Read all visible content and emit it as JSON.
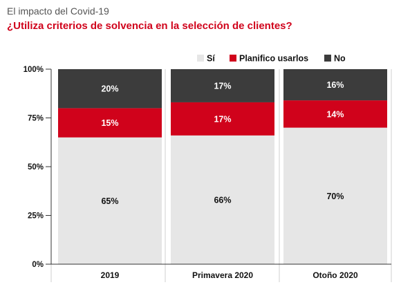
{
  "header": {
    "kicker": "El impacto del Covid-19",
    "title": "¿Utiliza criterios de solvencia en la selección de clientes?"
  },
  "colors": {
    "title": "#d0021b",
    "kicker": "#555555",
    "si": "#e6e6e6",
    "planifico": "#d0021b",
    "no": "#3c3c3c"
  },
  "chart_data": {
    "type": "bar",
    "stacked": true,
    "title": "¿Utiliza criterios de solvencia en la selección de clientes?",
    "categories": [
      "2019",
      "Primavera 2020",
      "Otoño 2020"
    ],
    "series": [
      {
        "name": "Sí",
        "color": "#e6e6e6",
        "values": [
          65,
          66,
          70
        ],
        "labels": [
          "65%",
          "66%",
          "70%"
        ]
      },
      {
        "name": "Planifico usarlos",
        "color": "#d0021b",
        "values": [
          15,
          17,
          14
        ],
        "labels": [
          "15%",
          "17%",
          "14%"
        ]
      },
      {
        "name": "No",
        "color": "#3c3c3c",
        "values": [
          20,
          17,
          16
        ],
        "labels": [
          "20%",
          "17%",
          "16%"
        ]
      }
    ],
    "ylim": [
      0,
      100
    ],
    "yticks": [
      "0%",
      "25%",
      "50%",
      "75%",
      "100%"
    ],
    "legend_position": "top-right",
    "grid": false
  }
}
